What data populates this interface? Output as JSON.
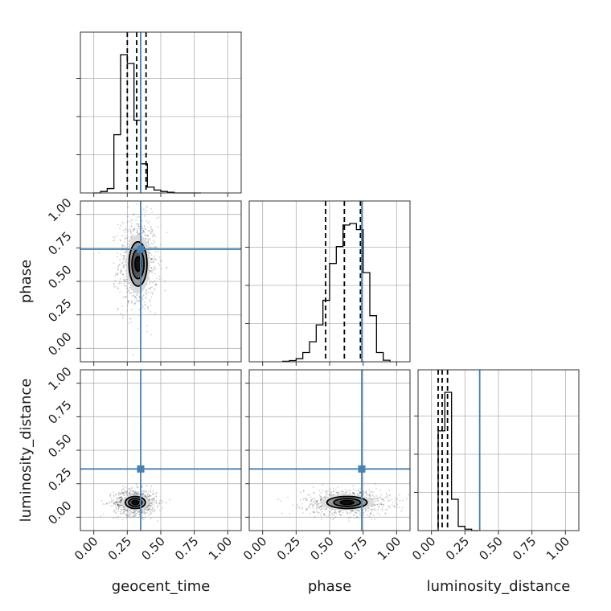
{
  "chart_data": {
    "type": "corner",
    "parameters": [
      "geocent_time",
      "phase",
      "luminosity_distance"
    ],
    "axis_labels": {
      "x": [
        "geocent_time",
        "phase",
        "luminosity_distance"
      ],
      "y": [
        "",
        "phase",
        "luminosity_distance"
      ]
    },
    "tick_values": [
      0.0,
      0.25,
      0.5,
      0.75,
      1.0
    ],
    "tick_labels": [
      "0.00",
      "0.25",
      "0.50",
      "0.75",
      "1.00"
    ],
    "axis_range": [
      -0.1,
      1.1
    ],
    "grid": true,
    "truths": {
      "geocent_time": 0.35,
      "phase": 0.74,
      "luminosity_distance": 0.36
    },
    "truth_color": "#4682b4",
    "histograms": [
      {
        "parameter": "geocent_time",
        "bin_edges": [
          0.0,
          0.05,
          0.1,
          0.15,
          0.2,
          0.25,
          0.3,
          0.35,
          0.4,
          0.45,
          0.5,
          0.55,
          0.6,
          0.65,
          0.7,
          0.75,
          0.8
        ],
        "counts": [
          0,
          2,
          6,
          80,
          190,
          178,
          100,
          40,
          8,
          4,
          2,
          1,
          0,
          0,
          0,
          0
        ],
        "quantiles": [
          0.25,
          0.32,
          0.39
        ]
      },
      {
        "parameter": "phase",
        "bin_edges": [
          0.15,
          0.2,
          0.25,
          0.3,
          0.35,
          0.4,
          0.45,
          0.5,
          0.55,
          0.6,
          0.65,
          0.7,
          0.75,
          0.8,
          0.85,
          0.9,
          0.95
        ],
        "counts": [
          0.3,
          0.8,
          2,
          6,
          13,
          24,
          40,
          64,
          75,
          89,
          90,
          86,
          58,
          30,
          6,
          1
        ],
        "quantiles": [
          0.47,
          0.61,
          0.73
        ]
      },
      {
        "parameter": "luminosity_distance",
        "bin_edges": [
          0.0,
          0.05,
          0.1,
          0.15,
          0.2,
          0.25,
          0.3,
          0.35
        ],
        "counts": [
          0,
          70,
          97,
          22,
          3,
          1,
          0
        ],
        "quantiles": [
          0.05,
          0.08,
          0.12
        ]
      }
    ],
    "density_2d": [
      {
        "x": "geocent_time",
        "y": "phase",
        "center": [
          0.33,
          0.63
        ],
        "spread": [
          0.045,
          0.11
        ],
        "contour_sigmas": [
          0.5,
          1.0,
          1.5,
          2.0
        ],
        "contour_fills": [
          "#111111",
          "#555555",
          "#9a9a9a",
          "#dcdcdc"
        ]
      },
      {
        "x": "geocent_time",
        "y": "luminosity_distance",
        "center": [
          0.31,
          0.11
        ],
        "spread": [
          0.05,
          0.03
        ],
        "contour_sigmas": [
          0.5,
          1.0,
          1.5,
          2.0
        ],
        "contour_fills": [
          "#111111",
          "#555555",
          "#9a9a9a",
          "#dcdcdc"
        ]
      },
      {
        "x": "phase",
        "y": "luminosity_distance",
        "center": [
          0.63,
          0.11
        ],
        "spread": [
          0.1,
          0.03
        ],
        "contour_sigmas": [
          0.5,
          1.0,
          1.5,
          2.0
        ],
        "contour_fills": [
          "#111111",
          "#555555",
          "#9a9a9a",
          "#dcdcdc"
        ]
      }
    ]
  }
}
